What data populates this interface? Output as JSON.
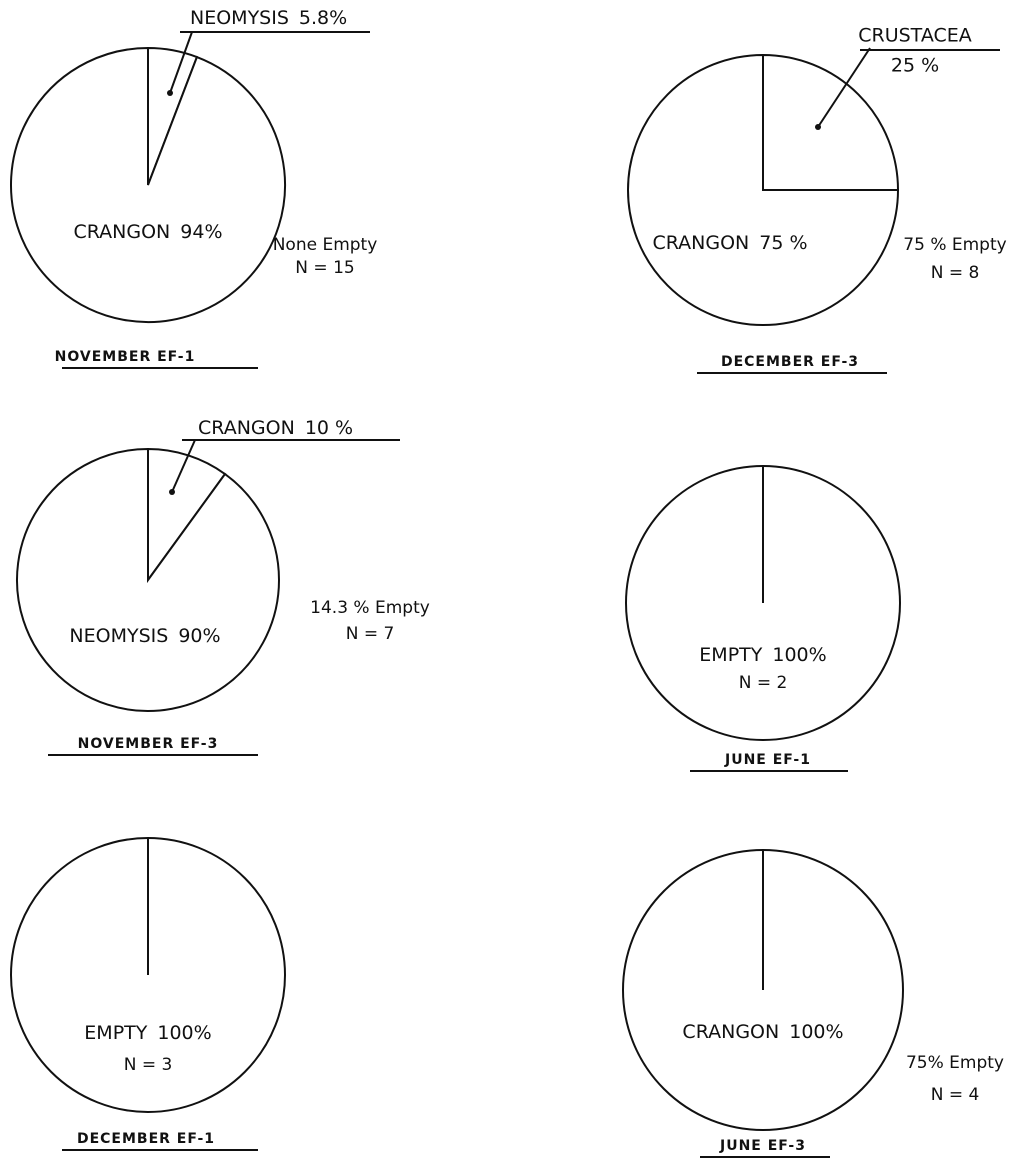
{
  "chart_data": [
    {
      "type": "pie",
      "title": "NOVEMBER EF-1",
      "categories": [
        "NEOMYSIS",
        "CRANGON"
      ],
      "values": [
        5.8,
        94
      ],
      "value_labels": [
        "5.8%",
        "94%"
      ],
      "annotations": [
        "None Empty",
        "N = 15"
      ]
    },
    {
      "type": "pie",
      "title": "DECEMBER EF-3",
      "categories": [
        "CRUSTACEA",
        "CRANGON"
      ],
      "values": [
        25,
        75
      ],
      "value_labels": [
        "25 %",
        "75 %"
      ],
      "annotations": [
        "75 % Empty",
        "N = 8"
      ]
    },
    {
      "type": "pie",
      "title": "NOVEMBER EF-3",
      "categories": [
        "CRANGON",
        "NEOMYSIS"
      ],
      "values": [
        10,
        90
      ],
      "value_labels": [
        "10 %",
        "90%"
      ],
      "annotations": [
        "14.3 % Empty",
        "N = 7"
      ]
    },
    {
      "type": "pie",
      "title": "JUNE EF-1",
      "categories": [
        "EMPTY"
      ],
      "values": [
        100
      ],
      "value_labels": [
        "100%"
      ],
      "annotations": [
        "N = 2"
      ]
    },
    {
      "type": "pie",
      "title": "DECEMBER EF-1",
      "categories": [
        "EMPTY"
      ],
      "values": [
        100
      ],
      "value_labels": [
        "100%"
      ],
      "annotations": [
        "N = 3"
      ]
    },
    {
      "type": "pie",
      "title": "JUNE EF-3",
      "categories": [
        "CRANGON"
      ],
      "values": [
        100
      ],
      "value_labels": [
        "100%"
      ],
      "annotations": [
        "75% Empty",
        "N = 4"
      ]
    }
  ]
}
